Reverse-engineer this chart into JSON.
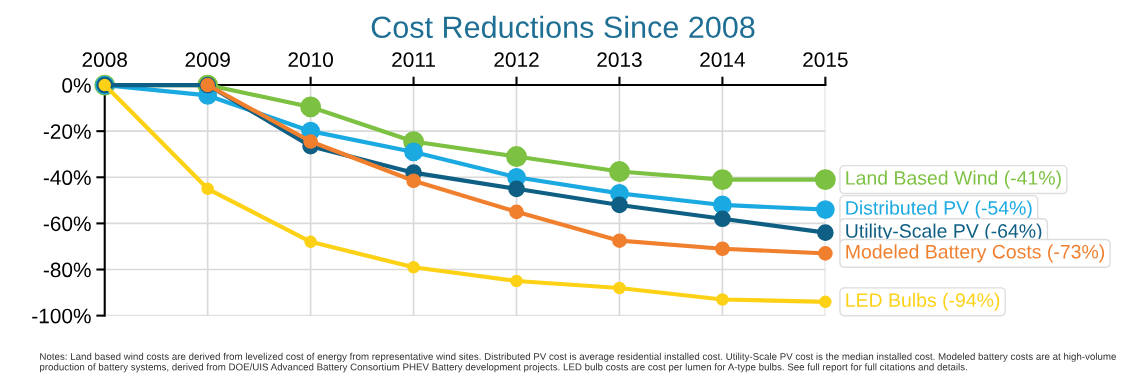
{
  "chart_data": {
    "type": "line",
    "title": "Cost Reductions Since 2008",
    "x": [
      2008,
      2009,
      2010,
      2011,
      2012,
      2013,
      2014,
      2015
    ],
    "series": [
      {
        "name": "Land Based Wind (-41%)",
        "color": "#7dc142",
        "values": [
          0,
          0,
          -9.5,
          -24.5,
          -31,
          -37.5,
          -41,
          -41
        ]
      },
      {
        "name": "Distributed PV (-54%)",
        "color": "#1ba9e1",
        "values": [
          0,
          -4.5,
          -20,
          -29,
          -40,
          -47,
          -52,
          -54
        ]
      },
      {
        "name": "Utility-Scale PV (-64%)",
        "color": "#0f5f84",
        "values": [
          0,
          0,
          -26.5,
          -38,
          -45,
          -52,
          -58,
          -64
        ]
      },
      {
        "name": "Modeled Battery Costs (-73%)",
        "color": "#f07f2e",
        "values": [
          null,
          0,
          -24.5,
          -41.5,
          -55,
          -67.5,
          -71,
          -73
        ]
      },
      {
        "name": "LED Bulbs (-94%)",
        "color": "#fcd116",
        "values": [
          0,
          -45,
          -68,
          -79,
          -85,
          -88,
          -93,
          -94
        ]
      }
    ],
    "xlim": [
      2008,
      2015
    ],
    "xticks": [
      2008,
      2009,
      2010,
      2011,
      2012,
      2013,
      2014,
      2015
    ],
    "ylim": [
      -100,
      0
    ],
    "yticks": [
      {
        "value": 0,
        "label": "0%"
      },
      {
        "value": -20,
        "label": "-20%"
      },
      {
        "value": -40,
        "label": "-40%"
      },
      {
        "value": -60,
        "label": "-60%"
      },
      {
        "value": -80,
        "label": "-80%"
      },
      {
        "value": -100,
        "label": "-100%"
      }
    ],
    "grid": true,
    "marker": "circle",
    "line_style": "solid",
    "annotations": [
      "Notes: Land based wind costs are derived from levelized cost of energy from representative wind sites. Distributed PV cost is average residential installed cost. Utility-Scale PV cost is the median installed cost. Modeled battery costs are at high-volume production of battery systems, derived from DOE/UIS Advanced Battery Consortium PHEV Battery development projects. LED bulb costs are cost per lumen for A-type bulbs. See full report for full citations and details."
    ]
  }
}
